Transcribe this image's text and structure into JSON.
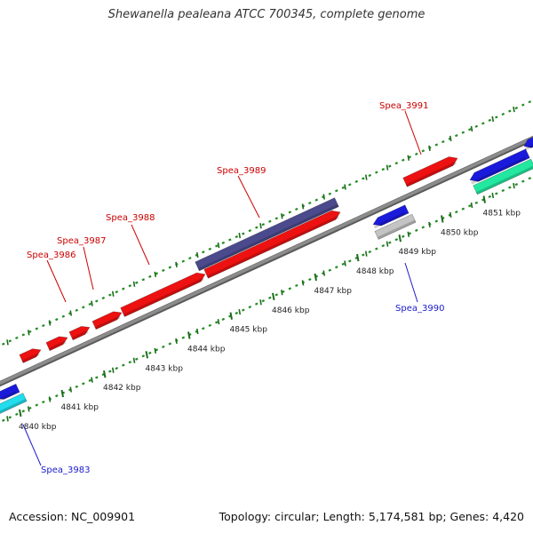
{
  "title": "Shewanella pealeana ATCC 700345, complete genome",
  "footer": {
    "accession": "Accession: NC_009901",
    "summary": "Topology: circular; Length: 5,174,581 bp; Genes: 4,420"
  },
  "colors": {
    "backbone": "#8c8c8c",
    "dots": "#228b22",
    "forward_gene": "#ee1111",
    "forward_dark": "#4b4a8c",
    "reverse_gene": "#1a1adc",
    "reverse_cyan": "#22ddee",
    "reverse_teal": "#22e8a0",
    "reverse_gray": "#c4c4c4",
    "label_forward": "#cc0000",
    "label_reverse": "#1a1acc"
  },
  "scale": {
    "ticks_kbp": [
      4840,
      4841,
      4842,
      4843,
      4844,
      4845,
      4846,
      4847,
      4848,
      4849,
      4850,
      4851
    ],
    "tick_labels": [
      "4840 kbp",
      "4841 kbp",
      "4842 kbp",
      "4843 kbp",
      "4844 kbp",
      "4845 kbp",
      "4846 kbp",
      "4847 kbp",
      "4848 kbp",
      "4849 kbp",
      "4850 kbp",
      "4851 kbp"
    ]
  },
  "gene_labels": [
    {
      "id": "Spea_3986",
      "strand": "forward",
      "label": "Spea_3986"
    },
    {
      "id": "Spea_3987",
      "strand": "forward",
      "label": "Spea_3987"
    },
    {
      "id": "Spea_3988",
      "strand": "forward",
      "label": "Spea_3988"
    },
    {
      "id": "Spea_3989",
      "strand": "forward",
      "label": "Spea_3989"
    },
    {
      "id": "Spea_3991",
      "strand": "forward",
      "label": "Spea_3991"
    },
    {
      "id": "Spea_3990",
      "strand": "reverse",
      "label": "Spea_3990"
    },
    {
      "id": "Spea_3983",
      "strand": "reverse",
      "label": "Spea_3983"
    }
  ]
}
